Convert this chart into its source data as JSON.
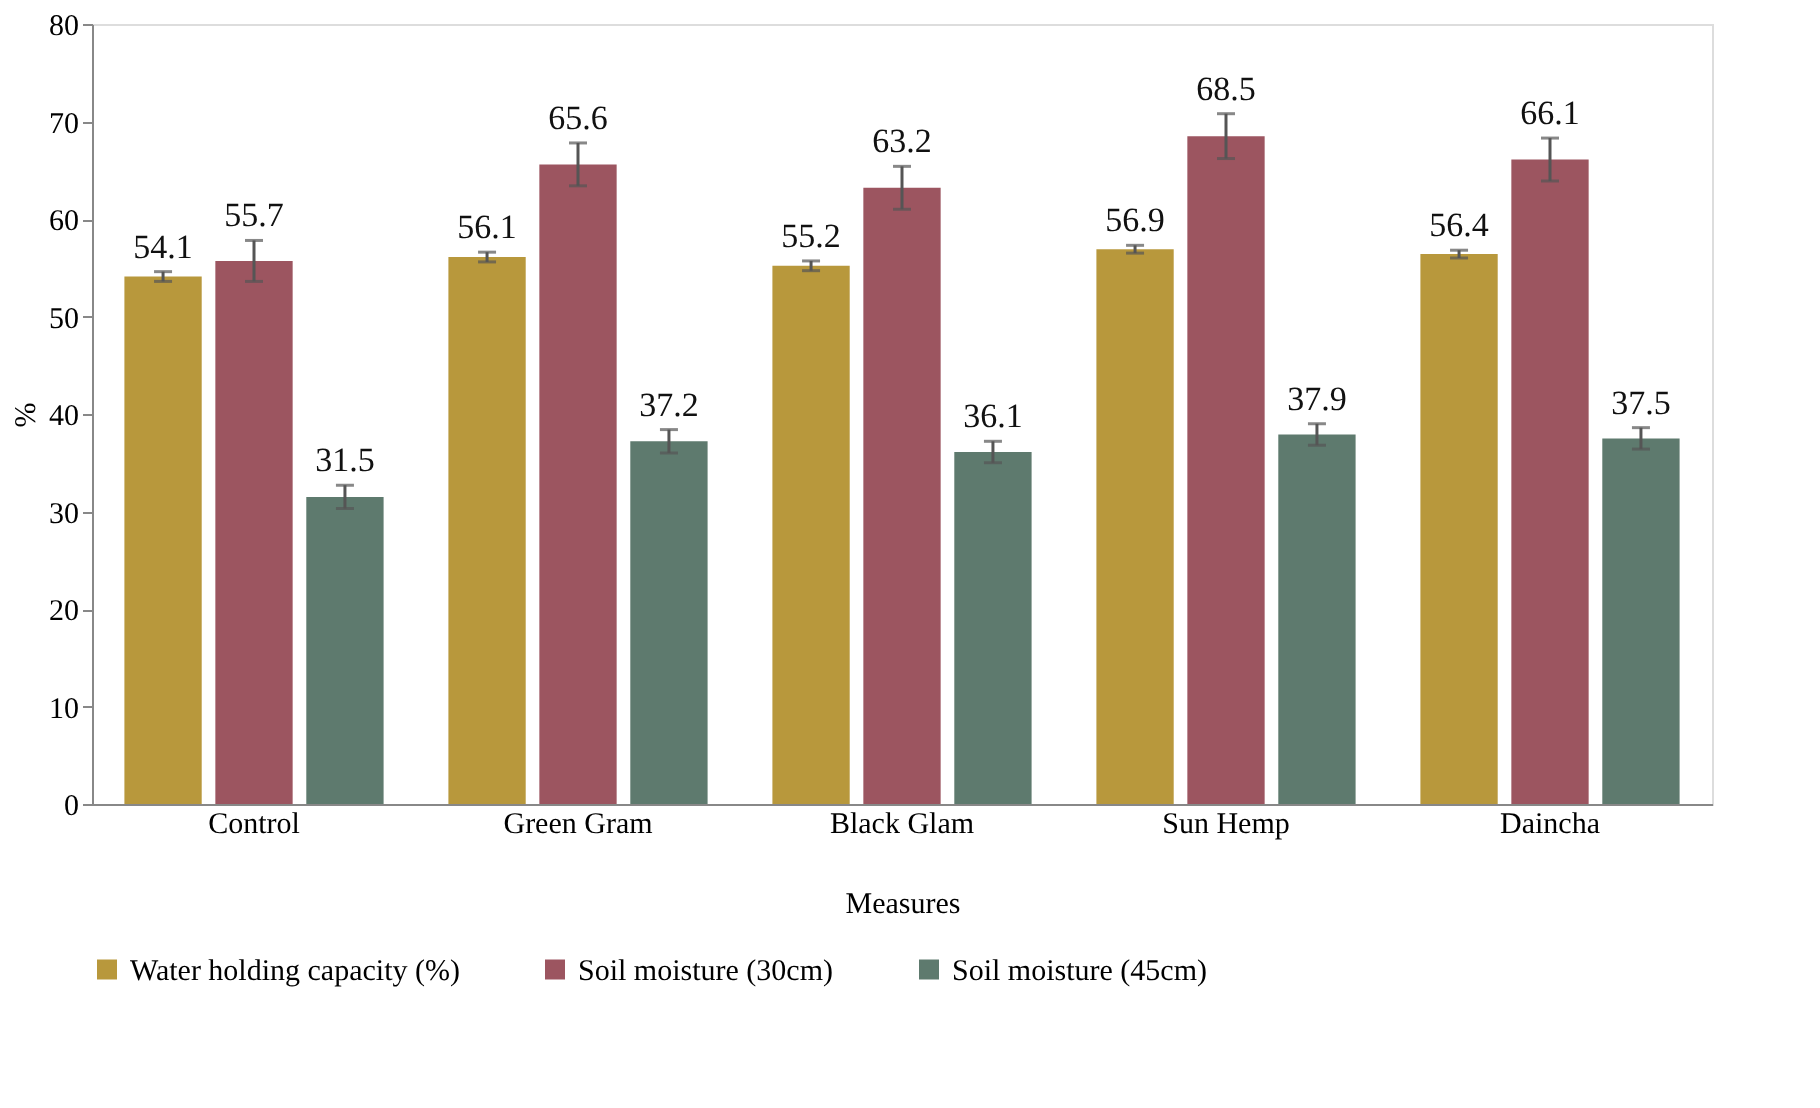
{
  "chart_data": {
    "type": "bar",
    "xlabel": "Measures",
    "ylabel": "%",
    "categories": [
      "Control",
      "Green Gram",
      "Black Glam",
      "Sun Hemp",
      "Daincha"
    ],
    "series": [
      {
        "name": "Water holding capacity (%)",
        "color": "#b8983c",
        "values": [
          54.1,
          56.1,
          55.2,
          56.9,
          56.4
        ],
        "errors": [
          0.5,
          0.5,
          0.5,
          0.4,
          0.4
        ]
      },
      {
        "name": "Soil moisture (30cm)",
        "color": "#9c5560",
        "values": [
          55.7,
          65.6,
          63.2,
          68.5,
          66.1
        ],
        "errors": [
          2.1,
          2.2,
          2.2,
          2.3,
          2.2
        ]
      },
      {
        "name": "Soil moisture (45cm)",
        "color": "#5e7a6e",
        "values": [
          31.5,
          37.2,
          36.1,
          37.9,
          37.5
        ],
        "errors": [
          1.2,
          1.2,
          1.1,
          1.1,
          1.1
        ]
      }
    ],
    "ylim": [
      0,
      80
    ],
    "yticks": [
      0,
      10,
      20,
      30,
      40,
      50,
      60,
      70,
      80
    ],
    "data_labels": true,
    "legend": "bottom",
    "grid": false
  }
}
